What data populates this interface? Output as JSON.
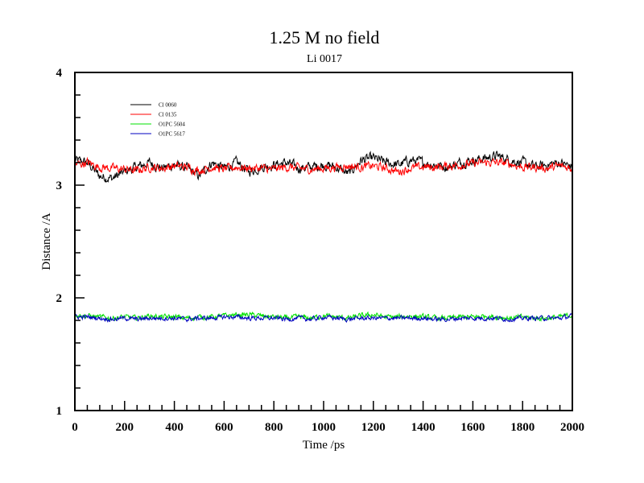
{
  "chart_data": {
    "type": "line",
    "title": "1.25 M no field",
    "subtitle": "Li 0017",
    "xlabel": "Time /ps",
    "ylabel": "Distance /A",
    "xlim": [
      0,
      2000
    ],
    "ylim": [
      1,
      4
    ],
    "xticks": [
      0,
      200,
      400,
      600,
      800,
      1000,
      1200,
      1400,
      1600,
      1800,
      2000
    ],
    "yticks": [
      1,
      2,
      3,
      4
    ],
    "x_minor_step": 50,
    "y_minor_step": 0.2,
    "grid": false,
    "legend_position": "top-left",
    "series": [
      {
        "name": "Cl 0060",
        "color": "#000000",
        "x": [
          0,
          50,
          100,
          150,
          200,
          250,
          300,
          350,
          400,
          450,
          500,
          550,
          600,
          650,
          700,
          750,
          800,
          850,
          900,
          950,
          1000,
          1050,
          1100,
          1150,
          1200,
          1250,
          1300,
          1350,
          1400,
          1450,
          1500,
          1550,
          1600,
          1650,
          1700,
          1750,
          1800,
          1850,
          1900,
          1950,
          2000
        ],
        "values": [
          3.22,
          3.2,
          3.08,
          3.06,
          3.12,
          3.16,
          3.2,
          3.15,
          3.18,
          3.15,
          3.08,
          3.2,
          3.15,
          3.2,
          3.12,
          3.16,
          3.18,
          3.2,
          3.15,
          3.16,
          3.18,
          3.16,
          3.1,
          3.22,
          3.24,
          3.2,
          3.18,
          3.22,
          3.2,
          3.18,
          3.16,
          3.2,
          3.22,
          3.24,
          3.26,
          3.22,
          3.2,
          3.16,
          3.18,
          3.2,
          3.16
        ],
        "noise": 0.035
      },
      {
        "name": "Cl 0135",
        "color": "#ff0000",
        "x": [
          0,
          50,
          100,
          150,
          200,
          250,
          300,
          350,
          400,
          450,
          500,
          550,
          600,
          650,
          700,
          750,
          800,
          850,
          900,
          950,
          1000,
          1050,
          1100,
          1150,
          1200,
          1250,
          1300,
          1350,
          1400,
          1450,
          1500,
          1550,
          1600,
          1650,
          1700,
          1750,
          1800,
          1850,
          1900,
          1950,
          2000
        ],
        "values": [
          3.18,
          3.2,
          3.16,
          3.15,
          3.14,
          3.13,
          3.16,
          3.15,
          3.17,
          3.16,
          3.13,
          3.16,
          3.14,
          3.16,
          3.15,
          3.15,
          3.14,
          3.16,
          3.15,
          3.14,
          3.15,
          3.16,
          3.17,
          3.16,
          3.17,
          3.15,
          3.12,
          3.15,
          3.16,
          3.16,
          3.17,
          3.18,
          3.19,
          3.2,
          3.2,
          3.19,
          3.16,
          3.16,
          3.15,
          3.17,
          3.15
        ],
        "noise": 0.03
      },
      {
        "name": "O1PC 5604",
        "color": "#00e000",
        "x": [
          0,
          50,
          100,
          150,
          200,
          250,
          300,
          350,
          400,
          450,
          500,
          550,
          600,
          650,
          700,
          750,
          800,
          850,
          900,
          950,
          1000,
          1050,
          1100,
          1150,
          1200,
          1250,
          1300,
          1350,
          1400,
          1450,
          1500,
          1550,
          1600,
          1650,
          1700,
          1750,
          1800,
          1850,
          1900,
          1950,
          2000
        ],
        "values": [
          1.85,
          1.84,
          1.83,
          1.82,
          1.83,
          1.82,
          1.84,
          1.83,
          1.83,
          1.82,
          1.83,
          1.83,
          1.84,
          1.85,
          1.85,
          1.84,
          1.83,
          1.82,
          1.83,
          1.82,
          1.84,
          1.83,
          1.82,
          1.84,
          1.85,
          1.83,
          1.83,
          1.84,
          1.83,
          1.82,
          1.82,
          1.83,
          1.83,
          1.84,
          1.83,
          1.82,
          1.83,
          1.82,
          1.82,
          1.83,
          1.85
        ],
        "noise": 0.018
      },
      {
        "name": "O1PC 5617",
        "color": "#0000c0",
        "x": [
          0,
          50,
          100,
          150,
          200,
          250,
          300,
          350,
          400,
          450,
          500,
          550,
          600,
          650,
          700,
          750,
          800,
          850,
          900,
          950,
          1000,
          1050,
          1100,
          1150,
          1200,
          1250,
          1300,
          1350,
          1400,
          1450,
          1500,
          1550,
          1600,
          1650,
          1700,
          1750,
          1800,
          1850,
          1900,
          1950,
          2000
        ],
        "values": [
          1.83,
          1.83,
          1.82,
          1.81,
          1.82,
          1.81,
          1.82,
          1.82,
          1.82,
          1.81,
          1.82,
          1.82,
          1.83,
          1.83,
          1.82,
          1.82,
          1.82,
          1.81,
          1.82,
          1.81,
          1.83,
          1.82,
          1.81,
          1.82,
          1.82,
          1.82,
          1.82,
          1.82,
          1.82,
          1.81,
          1.81,
          1.82,
          1.82,
          1.82,
          1.82,
          1.81,
          1.82,
          1.82,
          1.82,
          1.82,
          1.84
        ],
        "noise": 0.016
      }
    ]
  }
}
